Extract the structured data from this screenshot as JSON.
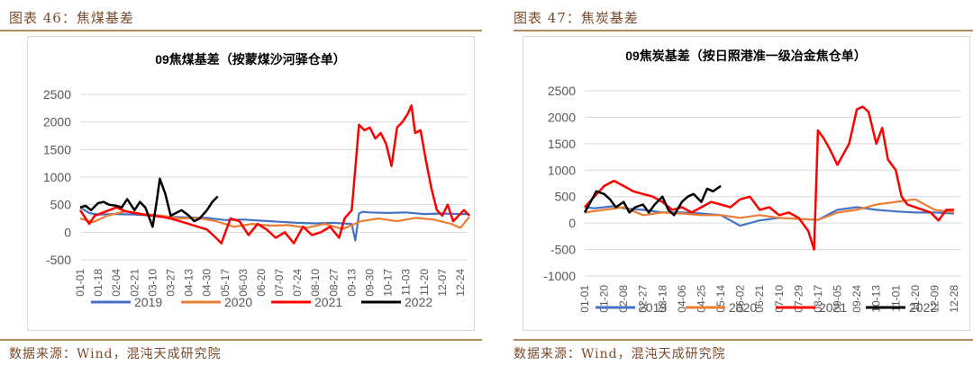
{
  "left": {
    "fig_label": "图表 46：焦煤基差",
    "source": "数据来源：Wind，混沌天成研究院"
  },
  "right": {
    "fig_label": "图表 47：焦炭基差",
    "source": "数据来源：Wind，混沌天成研究院"
  },
  "colors": {
    "2019": "#4472c4",
    "2020": "#ed7d31",
    "2021": "#ff0000",
    "2022": "#000000",
    "rule": "#b08a5a",
    "label": "#7a4a2a"
  },
  "chart_data": [
    {
      "type": "line",
      "title": "09焦煤基差（按蒙煤沙河驿仓单）",
      "ylim": [
        -500,
        2500
      ],
      "yticks": [
        "2500",
        "2000",
        "1500",
        "1000",
        "500",
        "0",
        "-500"
      ],
      "x_labels": [
        "01-01",
        "01-18",
        "02-04",
        "02-21",
        "03-10",
        "03-27",
        "04-13",
        "04-30",
        "05-17",
        "06-03",
        "06-20",
        "07-07",
        "07-24",
        "08-10",
        "08-27",
        "09-13",
        "09-30",
        "10-17",
        "11-03",
        "11-20",
        "12-07",
        "12-24"
      ],
      "grid": "horizontal",
      "legend_position": "bottom",
      "series": [
        {
          "name": "2019",
          "x": [
            0,
            0.5,
            1,
            2,
            3,
            4,
            5,
            6,
            7,
            8,
            9,
            10,
            11,
            12,
            13,
            14,
            15,
            15.2,
            15.4,
            15.6,
            16,
            17,
            18,
            19,
            20,
            21,
            21.5
          ],
          "y": [
            450,
            350,
            320,
            330,
            320,
            300,
            280,
            270,
            260,
            220,
            230,
            210,
            190,
            170,
            160,
            170,
            150,
            -150,
            340,
            370,
            360,
            350,
            360,
            330,
            340,
            330,
            330
          ]
        },
        {
          "name": "2020",
          "x": [
            0,
            0.7,
            1.5,
            2.5,
            3.5,
            4.5,
            5.5,
            6.5,
            7.5,
            8.5,
            9.5,
            10.5,
            11.5,
            12.5,
            13.5,
            14.5,
            15.5,
            16.5,
            17.5,
            18.5,
            19.5,
            20.5,
            21,
            21.5
          ],
          "y": [
            250,
            180,
            300,
            380,
            330,
            300,
            250,
            260,
            200,
            100,
            150,
            120,
            130,
            80,
            150,
            60,
            200,
            250,
            200,
            260,
            230,
            150,
            80,
            280
          ]
        },
        {
          "name": "2021",
          "x": [
            0,
            0.5,
            0.8,
            1.2,
            1.6,
            2,
            2.5,
            3,
            3.5,
            4,
            4.5,
            5,
            5.5,
            6,
            6.5,
            7,
            7.5,
            7.8,
            8.3,
            8.8,
            9.3,
            9.8,
            10.3,
            10.8,
            11.3,
            11.8,
            12.3,
            12.8,
            13.3,
            13.8,
            14.3,
            14.6,
            15,
            15.4,
            15.7,
            16,
            16.3,
            16.6,
            16.9,
            17.2,
            17.5,
            17.8,
            18.1,
            18.3,
            18.5,
            18.8,
            19.1,
            19.4,
            19.7,
            20,
            20.3,
            20.6,
            20.9,
            21.2,
            21.5
          ],
          "y": [
            400,
            150,
            300,
            350,
            400,
            450,
            380,
            350,
            320,
            300,
            280,
            250,
            200,
            150,
            100,
            50,
            -100,
            -200,
            250,
            200,
            -50,
            150,
            50,
            -100,
            0,
            -200,
            100,
            -50,
            0,
            100,
            -100,
            250,
            400,
            1950,
            1850,
            1900,
            1700,
            1800,
            1600,
            1200,
            1900,
            2000,
            2150,
            2300,
            1800,
            1850,
            1300,
            800,
            400,
            300,
            500,
            200,
            300,
            400,
            300
          ]
        },
        {
          "name": "2022",
          "x": [
            0,
            0.3,
            0.6,
            1,
            1.3,
            1.6,
            2,
            2.3,
            2.6,
            3,
            3.3,
            3.6,
            4,
            4.2,
            4.4,
            4.7,
            5,
            5.3,
            5.6,
            6,
            6.3,
            6.6,
            7,
            7.3,
            7.6
          ],
          "y": [
            450,
            480,
            400,
            530,
            550,
            500,
            480,
            450,
            600,
            400,
            550,
            450,
            100,
            500,
            970,
            700,
            300,
            350,
            400,
            300,
            200,
            250,
            400,
            550,
            650
          ]
        }
      ]
    },
    {
      "type": "line",
      "title": "09焦炭基差（按日照港准一级冶金焦仓单）",
      "ylim": [
        -1000,
        2500
      ],
      "yticks": [
        "2500",
        "2000",
        "1500",
        "1000",
        "500",
        "0",
        "-500",
        "-1000"
      ],
      "x_labels": [
        "01-01",
        "01-20",
        "02-08",
        "02-27",
        "03-18",
        "04-06",
        "04-25",
        "05-14",
        "06-02",
        "06-21",
        "07-10",
        "07-29",
        "08-17",
        "09-05",
        "09-24",
        "10-13",
        "11-01",
        "11-20",
        "12-09",
        "12-28"
      ],
      "grid": "horizontal",
      "legend_position": "bottom",
      "series": [
        {
          "name": "2019",
          "x": [
            0,
            0.5,
            1,
            1.5,
            2,
            3,
            4,
            5,
            6,
            7,
            7.5,
            8,
            9,
            10,
            11,
            12,
            13,
            14,
            15,
            16,
            17,
            18,
            19
          ],
          "y": [
            300,
            280,
            300,
            320,
            280,
            250,
            200,
            200,
            180,
            150,
            50,
            -50,
            50,
            100,
            80,
            60,
            250,
            300,
            250,
            220,
            200,
            200,
            180
          ]
        },
        {
          "name": "2020",
          "x": [
            0,
            1,
            2,
            3,
            4,
            5,
            6,
            7,
            8,
            9,
            10,
            11,
            12,
            13,
            14,
            15,
            16,
            17,
            18,
            19
          ],
          "y": [
            200,
            250,
            300,
            150,
            200,
            180,
            150,
            150,
            100,
            150,
            100,
            80,
            60,
            200,
            250,
            350,
            400,
            450,
            250,
            200
          ]
        },
        {
          "name": "2021",
          "x": [
            0,
            0.5,
            1,
            1.5,
            2,
            2.5,
            3,
            3.5,
            4,
            4.5,
            5,
            5.5,
            6,
            6.5,
            7,
            7.5,
            8,
            8.5,
            9,
            9.5,
            10,
            10.5,
            11,
            11.5,
            11.8,
            12,
            12.3,
            12.6,
            13,
            13.3,
            13.6,
            14,
            14.3,
            14.6,
            15,
            15.3,
            15.6,
            16,
            16.3,
            16.6,
            17,
            17.4,
            17.8,
            18.2,
            18.6,
            19
          ],
          "y": [
            300,
            500,
            700,
            800,
            700,
            600,
            550,
            500,
            400,
            250,
            300,
            200,
            300,
            400,
            350,
            300,
            450,
            500,
            250,
            300,
            150,
            200,
            100,
            -150,
            -500,
            1750,
            1600,
            1400,
            1100,
            1300,
            1500,
            2150,
            2200,
            2100,
            1500,
            1800,
            1200,
            1000,
            500,
            350,
            300,
            250,
            200,
            50,
            250,
            250
          ]
        },
        {
          "name": "2022",
          "x": [
            0,
            0.3,
            0.6,
            1,
            1.3,
            1.6,
            2,
            2.3,
            2.6,
            3,
            3.3,
            3.6,
            4,
            4.3,
            4.6,
            5,
            5.3,
            5.6,
            6,
            6.3,
            6.6,
            7
          ],
          "y": [
            200,
            400,
            600,
            550,
            450,
            300,
            400,
            200,
            300,
            350,
            200,
            350,
            500,
            250,
            150,
            400,
            500,
            550,
            400,
            650,
            600,
            700
          ]
        }
      ]
    }
  ],
  "legend": [
    "2019",
    "2020",
    "2021",
    "2022"
  ]
}
